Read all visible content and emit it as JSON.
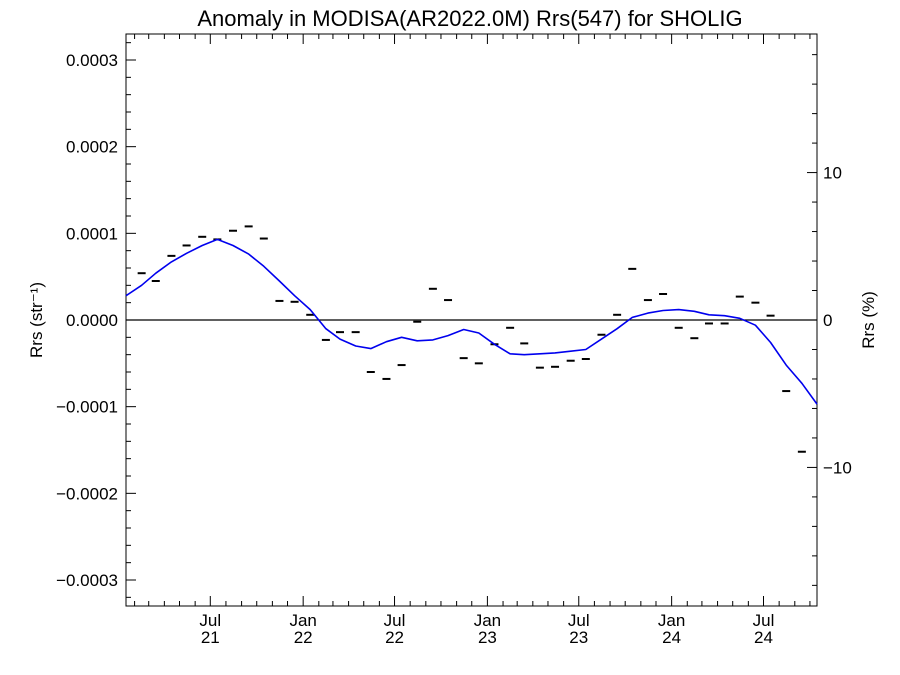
{
  "chart_data": {
    "type": "scatter",
    "title": "Anomaly in MODISA(AR2022.0M) Rrs(547) for SHOLIG",
    "xlabel": "",
    "ylabel_left": "Rrs (str⁻¹)",
    "ylabel_right": "Rrs (%)",
    "xlim": [
      "2021-01-15",
      "2024-10-15"
    ],
    "ylim": [
      -0.00033,
      0.00033
    ],
    "ylim_right": [
      -19.4,
      19.4
    ],
    "grid": false,
    "zero_line": true,
    "x_ticks": [
      {
        "date": "2021-07-01",
        "month": "Jul",
        "year": "21"
      },
      {
        "date": "2022-01-01",
        "month": "Jan",
        "year": "22"
      },
      {
        "date": "2022-07-01",
        "month": "Jul",
        "year": "22"
      },
      {
        "date": "2023-01-01",
        "month": "Jan",
        "year": "23"
      },
      {
        "date": "2023-07-01",
        "month": "Jul",
        "year": "23"
      },
      {
        "date": "2024-01-01",
        "month": "Jan",
        "year": "24"
      },
      {
        "date": "2024-07-01",
        "month": "Jul",
        "year": "24"
      }
    ],
    "y_ticks_left": [
      {
        "value": 0.0003,
        "label": "0.0003"
      },
      {
        "value": 0.0002,
        "label": "0.0002"
      },
      {
        "value": 0.0001,
        "label": "0.0001"
      },
      {
        "value": 0.0,
        "label": "0.0000"
      },
      {
        "value": -0.0001,
        "label": "−0.0001"
      },
      {
        "value": -0.0002,
        "label": "−0.0002"
      },
      {
        "value": -0.0003,
        "label": "−0.0003"
      }
    ],
    "y_ticks_right": [
      {
        "value": 10,
        "label": "10"
      },
      {
        "value": 0,
        "label": "0"
      },
      {
        "value": -10,
        "label": "−10"
      }
    ],
    "series": [
      {
        "style": "markers",
        "color": "#000000",
        "points": [
          {
            "x": "2021-02-15",
            "y": 5.4e-05
          },
          {
            "x": "2021-03-15",
            "y": 4.5e-05
          },
          {
            "x": "2021-04-15",
            "y": 7.4e-05
          },
          {
            "x": "2021-05-15",
            "y": 8.6e-05
          },
          {
            "x": "2021-06-15",
            "y": 9.6e-05
          },
          {
            "x": "2021-07-15",
            "y": 9.3e-05
          },
          {
            "x": "2021-08-15",
            "y": 0.000103
          },
          {
            "x": "2021-09-15",
            "y": 0.000108
          },
          {
            "x": "2021-10-15",
            "y": 9.4e-05
          },
          {
            "x": "2021-11-15",
            "y": 2.2e-05
          },
          {
            "x": "2021-12-15",
            "y": 2.1e-05
          },
          {
            "x": "2022-01-15",
            "y": 6e-06
          },
          {
            "x": "2022-02-15",
            "y": -2.3e-05
          },
          {
            "x": "2022-03-15",
            "y": -1.4e-05
          },
          {
            "x": "2022-04-15",
            "y": -1.4e-05
          },
          {
            "x": "2022-05-15",
            "y": -6e-05
          },
          {
            "x": "2022-06-15",
            "y": -6.8e-05
          },
          {
            "x": "2022-07-15",
            "y": -5.2e-05
          },
          {
            "x": "2022-08-15",
            "y": -2e-06
          },
          {
            "x": "2022-09-15",
            "y": 3.6e-05
          },
          {
            "x": "2022-10-15",
            "y": 2.3e-05
          },
          {
            "x": "2022-11-15",
            "y": -4.4e-05
          },
          {
            "x": "2022-12-15",
            "y": -5e-05
          },
          {
            "x": "2023-01-15",
            "y": -2.8e-05
          },
          {
            "x": "2023-02-15",
            "y": -9e-06
          },
          {
            "x": "2023-03-15",
            "y": -2.7e-05
          },
          {
            "x": "2023-04-15",
            "y": -5.5e-05
          },
          {
            "x": "2023-05-15",
            "y": -5.4e-05
          },
          {
            "x": "2023-06-15",
            "y": -4.7e-05
          },
          {
            "x": "2023-07-15",
            "y": -4.5e-05
          },
          {
            "x": "2023-08-15",
            "y": -1.7e-05
          },
          {
            "x": "2023-09-15",
            "y": 6e-06
          },
          {
            "x": "2023-10-15",
            "y": 5.9e-05
          },
          {
            "x": "2023-11-15",
            "y": 2.3e-05
          },
          {
            "x": "2023-12-15",
            "y": 3e-05
          },
          {
            "x": "2024-01-15",
            "y": -9e-06
          },
          {
            "x": "2024-02-15",
            "y": -2.1e-05
          },
          {
            "x": "2024-03-15",
            "y": -4e-06
          },
          {
            "x": "2024-04-15",
            "y": -4e-06
          },
          {
            "x": "2024-05-15",
            "y": 2.7e-05
          },
          {
            "x": "2024-06-15",
            "y": 2e-05
          },
          {
            "x": "2024-07-15",
            "y": 5e-06
          },
          {
            "x": "2024-08-15",
            "y": -8.2e-05
          },
          {
            "x": "2024-09-15",
            "y": -0.000152
          }
        ]
      },
      {
        "style": "line",
        "color": "#0000ee",
        "points": [
          {
            "x": "2021-01-15",
            "y": 2.8e-05
          },
          {
            "x": "2021-02-15",
            "y": 4e-05
          },
          {
            "x": "2021-03-15",
            "y": 5.4e-05
          },
          {
            "x": "2021-04-15",
            "y": 6.7e-05
          },
          {
            "x": "2021-05-15",
            "y": 7.7e-05
          },
          {
            "x": "2021-06-15",
            "y": 8.6e-05
          },
          {
            "x": "2021-07-15",
            "y": 9.3e-05
          },
          {
            "x": "2021-08-15",
            "y": 8.6e-05
          },
          {
            "x": "2021-09-15",
            "y": 7.6e-05
          },
          {
            "x": "2021-10-15",
            "y": 6.2e-05
          },
          {
            "x": "2021-11-15",
            "y": 4.5e-05
          },
          {
            "x": "2021-12-15",
            "y": 2.8e-05
          },
          {
            "x": "2022-01-15",
            "y": 1.2e-05
          },
          {
            "x": "2022-02-15",
            "y": -1e-05
          },
          {
            "x": "2022-03-15",
            "y": -2.2e-05
          },
          {
            "x": "2022-04-15",
            "y": -3e-05
          },
          {
            "x": "2022-05-15",
            "y": -3.3e-05
          },
          {
            "x": "2022-06-15",
            "y": -2.5e-05
          },
          {
            "x": "2022-07-15",
            "y": -2e-05
          },
          {
            "x": "2022-08-15",
            "y": -2.4e-05
          },
          {
            "x": "2022-09-15",
            "y": -2.3e-05
          },
          {
            "x": "2022-10-15",
            "y": -1.8e-05
          },
          {
            "x": "2022-11-15",
            "y": -1.1e-05
          },
          {
            "x": "2022-12-15",
            "y": -1.5e-05
          },
          {
            "x": "2023-01-15",
            "y": -2.8e-05
          },
          {
            "x": "2023-02-15",
            "y": -3.9e-05
          },
          {
            "x": "2023-03-15",
            "y": -4e-05
          },
          {
            "x": "2023-04-15",
            "y": -3.9e-05
          },
          {
            "x": "2023-05-15",
            "y": -3.8e-05
          },
          {
            "x": "2023-06-15",
            "y": -3.6e-05
          },
          {
            "x": "2023-07-15",
            "y": -3.4e-05
          },
          {
            "x": "2023-08-15",
            "y": -2.2e-05
          },
          {
            "x": "2023-09-15",
            "y": -1e-05
          },
          {
            "x": "2023-10-15",
            "y": 3e-06
          },
          {
            "x": "2023-11-15",
            "y": 8e-06
          },
          {
            "x": "2023-12-15",
            "y": 1.1e-05
          },
          {
            "x": "2024-01-15",
            "y": 1.2e-05
          },
          {
            "x": "2024-02-15",
            "y": 1e-05
          },
          {
            "x": "2024-03-15",
            "y": 6e-06
          },
          {
            "x": "2024-04-15",
            "y": 5e-06
          },
          {
            "x": "2024-05-15",
            "y": 2e-06
          },
          {
            "x": "2024-06-15",
            "y": -6e-06
          },
          {
            "x": "2024-07-15",
            "y": -2.6e-05
          },
          {
            "x": "2024-08-15",
            "y": -5.2e-05
          },
          {
            "x": "2024-09-15",
            "y": -7.3e-05
          },
          {
            "x": "2024-10-15",
            "y": -9.7e-05
          }
        ]
      }
    ]
  }
}
